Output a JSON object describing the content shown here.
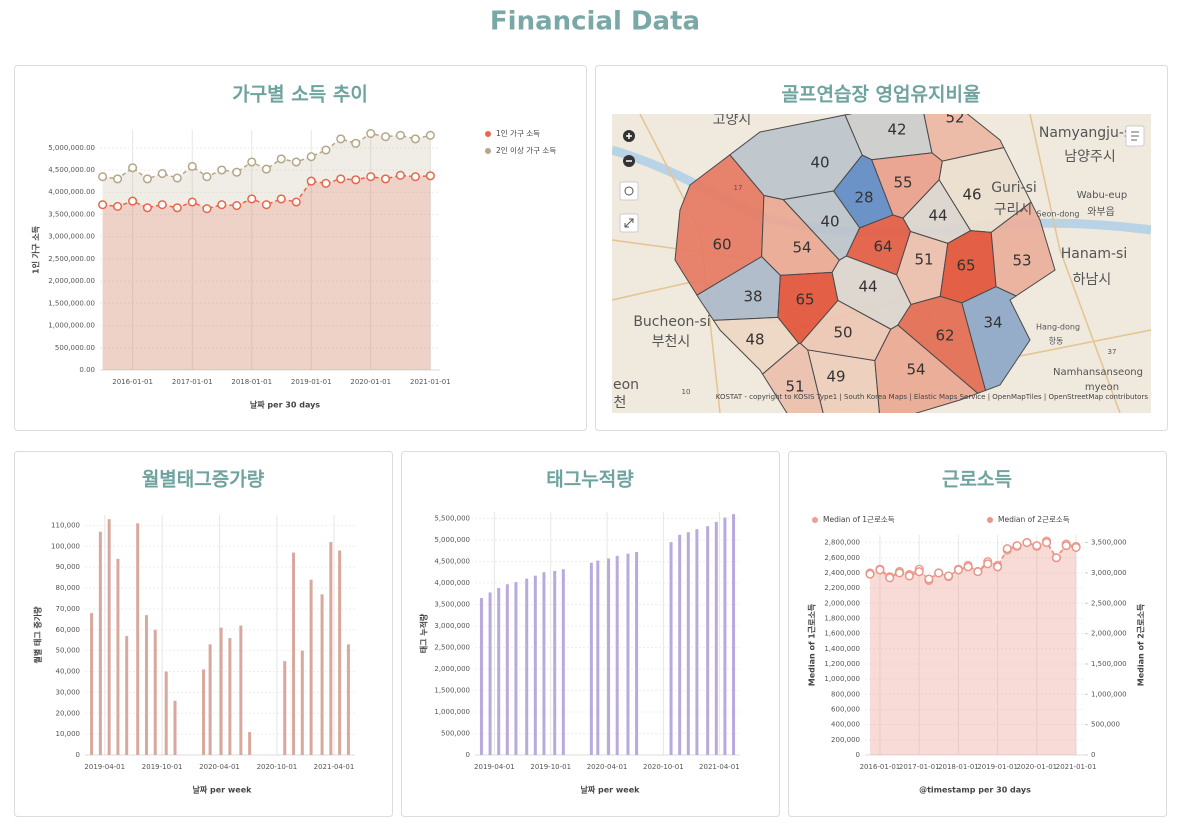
{
  "title": "Financial Data",
  "chart_data": [
    {
      "type": "line",
      "title": "가구별 소득 추이",
      "x": [
        "2015-07-01",
        "2015-10-01",
        "2016-01-01",
        "2016-04-01",
        "2016-07-01",
        "2016-10-01",
        "2017-01-01",
        "2017-04-01",
        "2017-07-01",
        "2017-10-01",
        "2018-01-01",
        "2018-04-01",
        "2018-07-01",
        "2018-10-01",
        "2019-01-01",
        "2019-04-01",
        "2019-07-01",
        "2019-10-01",
        "2020-01-01",
        "2020-04-01",
        "2020-07-01",
        "2020-10-01",
        "2021-01-01"
      ],
      "series": [
        {
          "name": "1인 가구 소득",
          "color": "#e8664a",
          "values": [
            3720000,
            3680000,
            3800000,
            3650000,
            3720000,
            3650000,
            3780000,
            3630000,
            3720000,
            3700000,
            3850000,
            3720000,
            3850000,
            3780000,
            4250000,
            4200000,
            4300000,
            4280000,
            4350000,
            4300000,
            4380000,
            4350000,
            4370000
          ]
        },
        {
          "name": "2인 이상 가구 소득",
          "color": "#b5a688",
          "values": [
            4350000,
            4300000,
            4550000,
            4300000,
            4420000,
            4320000,
            4580000,
            4350000,
            4500000,
            4450000,
            4680000,
            4520000,
            4750000,
            4680000,
            4800000,
            4950000,
            5200000,
            5100000,
            5320000,
            5250000,
            5280000,
            5200000,
            5280000
          ]
        }
      ],
      "xlim": [
        "2015-06-15",
        "2021-03-01"
      ],
      "xticks": [
        "2016-01-01",
        "2017-01-01",
        "2018-01-01",
        "2019-01-01",
        "2020-01-01",
        "2021-01-01"
      ],
      "ylim": [
        0,
        5400000
      ],
      "yticks": [
        {
          "value": 0,
          "label": "0.00"
        },
        {
          "value": 500000,
          "label": "500,000.00"
        },
        {
          "value": 1000000,
          "label": "1,000,000.00"
        },
        {
          "value": 1500000,
          "label": "1,500,000.00"
        },
        {
          "value": 2000000,
          "label": "2,000,000.00"
        },
        {
          "value": 2500000,
          "label": "2,500,000.00"
        },
        {
          "value": 3000000,
          "label": "3,000,000.00"
        },
        {
          "value": 3500000,
          "label": "3,500,000.00"
        },
        {
          "value": 4000000,
          "label": "4,000,000.00"
        },
        {
          "value": 4500000,
          "label": "4,500,000.00"
        },
        {
          "value": 5000000,
          "label": "5,000,000.00"
        }
      ],
      "y_label": "1인 가구 소득",
      "x_label": "날짜 per 30 days",
      "grid": true,
      "legend": "right"
    },
    {
      "type": "choropleth",
      "title": "골프연습장 영업유지비율",
      "regions": [
        42,
        52,
        40,
        28,
        55,
        46,
        44,
        40,
        60,
        54,
        64,
        51,
        65,
        53,
        38,
        65,
        44,
        34,
        48,
        50,
        62,
        49,
        54,
        51
      ],
      "colors": [
        "#5f8bc4",
        "#efe1cf",
        "#e2543a"
      ],
      "labels": [
        "고양시",
        "Namyangju-si",
        "남양주시",
        "Guri-si",
        "구리시",
        "Wabu-eup",
        "와부읍",
        "Seon-dong",
        "Hanam-si",
        "하남시",
        "Bucheon-si",
        "부천시",
        "Hang-dong",
        "항동",
        "Namhansanseong",
        "myeon",
        "eon",
        "천",
        "17",
        "10",
        "37"
      ],
      "attribution": "KOSTAT - copyright to KOSIS Type1 | South Korea Maps | Elastic Maps Service | OpenMapTiles | OpenStreetMap contributors"
    },
    {
      "type": "bar",
      "title": "월별태그증가량",
      "color": "#d9a89c",
      "x": [
        "2019-02-18",
        "2019-03-18",
        "2019-04-15",
        "2019-05-13",
        "2019-06-10",
        "2019-07-15",
        "2019-08-12",
        "2019-09-09",
        "2019-10-14",
        "2019-11-11",
        "2020-02-10",
        "2020-03-02",
        "2020-04-06",
        "2020-05-04",
        "2020-06-08",
        "2020-07-06",
        "2020-10-26",
        "2020-11-23",
        "2020-12-21",
        "2021-01-18",
        "2021-02-22",
        "2021-03-22",
        "2021-04-19",
        "2021-05-17"
      ],
      "values": [
        68000,
        107000,
        113000,
        94000,
        57000,
        111000,
        67000,
        60000,
        40000,
        26000,
        41000,
        53000,
        61000,
        56000,
        62000,
        11000,
        45000,
        97000,
        50000,
        84000,
        77000,
        102000,
        98000,
        53000
      ],
      "xlim": [
        "2019-01-28",
        "2021-06-07"
      ],
      "xticks": [
        "2019-04-01",
        "2019-10-01",
        "2020-04-01",
        "2020-10-01",
        "2021-04-01"
      ],
      "ylim": [
        0,
        115000
      ],
      "yticks": [
        0,
        {
          "value": 10000,
          "label": "10,000"
        },
        {
          "value": 20000,
          "label": "20,000"
        },
        {
          "value": 30000,
          "label": "30,000"
        },
        {
          "value": 40000,
          "label": "40,000"
        },
        {
          "value": 50000,
          "label": "50,000"
        },
        {
          "value": 60000,
          "label": "60,000"
        },
        {
          "value": 70000,
          "label": "70,000"
        },
        {
          "value": 80000,
          "label": "80,000"
        },
        {
          "value": 90000,
          "label": "90,000"
        },
        {
          "value": 100000,
          "label": "100,000"
        },
        {
          "value": 110000,
          "label": "110,000"
        }
      ],
      "y_label": "월별 태그 증가량",
      "x_label": "날짜 per week",
      "grid": true
    },
    {
      "type": "bar",
      "title": "태그누적량",
      "color": "#b9a9dc",
      "x": [
        "2019-02-18",
        "2019-03-18",
        "2019-04-15",
        "2019-05-13",
        "2019-06-10",
        "2019-07-15",
        "2019-08-12",
        "2019-09-09",
        "2019-10-14",
        "2019-11-11",
        "2020-02-10",
        "2020-03-02",
        "2020-04-06",
        "2020-05-04",
        "2020-06-08",
        "2020-07-06",
        "2020-10-26",
        "2020-11-23",
        "2020-12-21",
        "2021-01-18",
        "2021-02-22",
        "2021-03-22",
        "2021-04-19",
        "2021-05-17"
      ],
      "values": [
        3650000,
        3780000,
        3880000,
        3970000,
        4020000,
        4100000,
        4170000,
        4250000,
        4280000,
        4320000,
        4470000,
        4520000,
        4570000,
        4630000,
        4680000,
        4720000,
        4950000,
        5120000,
        5180000,
        5250000,
        5320000,
        5420000,
        5520000,
        5600000
      ],
      "xlim": [
        "2019-01-28",
        "2021-06-07"
      ],
      "xticks": [
        "2019-04-01",
        "2019-10-01",
        "2020-04-01",
        "2020-10-01",
        "2021-04-01"
      ],
      "ylim": [
        0,
        5650000
      ],
      "yticks": [
        0,
        {
          "value": 500000,
          "label": "500,000"
        },
        {
          "value": 1000000,
          "label": "1,000,000"
        },
        {
          "value": 1500000,
          "label": "1,500,000"
        },
        {
          "value": 2000000,
          "label": "2,000,000"
        },
        {
          "value": 2500000,
          "label": "2,500,000"
        },
        {
          "value": 3000000,
          "label": "3,000,000"
        },
        {
          "value": 3500000,
          "label": "3,500,000"
        },
        {
          "value": 4000000,
          "label": "4,000,000"
        },
        {
          "value": 4500000,
          "label": "4,500,000"
        },
        {
          "value": 5000000,
          "label": "5,000,000"
        },
        {
          "value": 5500000,
          "label": "5,500,000"
        }
      ],
      "y_label": "태그 누적량",
      "x_label": "날짜 per week",
      "grid": true
    },
    {
      "type": "line",
      "title": "근로소득",
      "x": [
        "2015-10-01",
        "2016-01-01",
        "2016-04-01",
        "2016-07-01",
        "2016-10-01",
        "2017-01-01",
        "2017-04-01",
        "2017-07-01",
        "2017-10-01",
        "2018-01-01",
        "2018-04-01",
        "2018-07-01",
        "2018-10-01",
        "2019-01-01",
        "2019-04-01",
        "2019-07-01",
        "2019-10-01",
        "2020-01-01",
        "2020-04-01",
        "2020-07-01",
        "2020-10-01",
        "2021-01-01"
      ],
      "series": [
        {
          "name": "Median of 1근로소득",
          "color": "#f0a090",
          "values": [
            2400000,
            2450000,
            2350000,
            2420000,
            2380000,
            2450000,
            2300000,
            2400000,
            2350000,
            2450000,
            2500000,
            2420000,
            2550000,
            2500000,
            2700000,
            2750000,
            2800000,
            2750000,
            2820000,
            2600000,
            2780000,
            2750000
          ]
        },
        {
          "name": "Median of 2근로소득",
          "color": "#e8958a",
          "axis": "y2",
          "values": [
            2980000,
            3050000,
            2920000,
            3000000,
            2950000,
            3020000,
            2900000,
            3000000,
            2950000,
            3050000,
            3100000,
            3020000,
            3150000,
            3100000,
            3400000,
            3450000,
            3500000,
            3450000,
            3500000,
            3250000,
            3450000,
            3420000
          ]
        }
      ],
      "xlim": [
        "2015-08-15",
        "2021-03-25"
      ],
      "xticks": [
        "2016-01-01",
        "2017-01-01",
        "2018-01-01",
        "2019-01-01",
        "2020-01-01",
        "2021-01-01"
      ],
      "ylim": [
        0,
        2900000
      ],
      "yticks": [
        0,
        {
          "value": 200000,
          "label": "200,000"
        },
        {
          "value": 400000,
          "label": "400,000"
        },
        {
          "value": 600000,
          "label": "600,000"
        },
        {
          "value": 800000,
          "label": "800,000"
        },
        {
          "value": 1000000,
          "label": "1,000,000"
        },
        {
          "value": 1200000,
          "label": "1,200,000"
        },
        {
          "value": 1400000,
          "label": "1,400,000"
        },
        {
          "value": 1600000,
          "label": "1,600,000"
        },
        {
          "value": 1800000,
          "label": "1,800,000"
        },
        {
          "value": 2000000,
          "label": "2,000,000"
        },
        {
          "value": 2200000,
          "label": "2,200,000"
        },
        {
          "value": 2400000,
          "label": "2,400,000"
        },
        {
          "value": 2600000,
          "label": "2,600,000"
        },
        {
          "value": 2800000,
          "label": "2,800,000"
        }
      ],
      "y2lim": [
        0,
        3625000
      ],
      "y2ticks": [
        0,
        {
          "value": 500000,
          "label": "500,000"
        },
        {
          "value": 1000000,
          "label": "1,000,000"
        },
        {
          "value": 1500000,
          "label": "1,500,000"
        },
        {
          "value": 2000000,
          "label": "2,000,000"
        },
        {
          "value": 2500000,
          "label": "2,500,000"
        },
        {
          "value": 3000000,
          "label": "3,000,000"
        },
        {
          "value": 3500000,
          "label": "3,500,000"
        }
      ],
      "y_label": "Median of 1근로소득",
      "y2_label": "Median of 2근로소득",
      "x_label": "@timestamp per 30 days",
      "grid": true,
      "legend": "top"
    }
  ]
}
